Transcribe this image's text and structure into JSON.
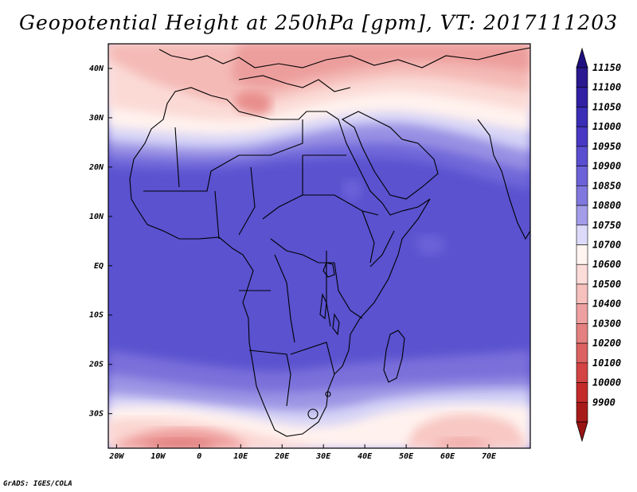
{
  "title": "Geopotential Height at 250hPa [gpm], VT: 2017111203",
  "credit": "GrADS: IGES/COLA",
  "map": {
    "projection": "latlon",
    "lon_range": [
      -22,
      80
    ],
    "lat_range": [
      -37,
      45
    ],
    "lon_ticks": [
      {
        "value": -20,
        "label": "20W"
      },
      {
        "value": -10,
        "label": "10W"
      },
      {
        "value": 0,
        "label": "0"
      },
      {
        "value": 10,
        "label": "10E"
      },
      {
        "value": 20,
        "label": "20E"
      },
      {
        "value": 30,
        "label": "30E"
      },
      {
        "value": 40,
        "label": "40E"
      },
      {
        "value": 50,
        "label": "50E"
      },
      {
        "value": 60,
        "label": "60E"
      },
      {
        "value": 70,
        "label": "70E"
      }
    ],
    "lat_ticks": [
      {
        "value": 40,
        "label": "40N"
      },
      {
        "value": 30,
        "label": "30N"
      },
      {
        "value": 20,
        "label": "20N"
      },
      {
        "value": 10,
        "label": "10N"
      },
      {
        "value": 0,
        "label": "EQ"
      },
      {
        "value": -10,
        "label": "10S"
      },
      {
        "value": -20,
        "label": "20S"
      },
      {
        "value": -30,
        "label": "30S"
      }
    ]
  },
  "colorbar": {
    "levels": [
      {
        "label": "11150",
        "color": "#2a1890"
      },
      {
        "label": "11100",
        "color": "#3120a4"
      },
      {
        "label": "11050",
        "color": "#3a2db6"
      },
      {
        "label": "11000",
        "color": "#4838c4"
      },
      {
        "label": "10950",
        "color": "#5a4ed0"
      },
      {
        "label": "10900",
        "color": "#6c62d8"
      },
      {
        "label": "10850",
        "color": "#8078de"
      },
      {
        "label": "10800",
        "color": "#a39ce8"
      },
      {
        "label": "10750",
        "color": "#dcdaf8"
      },
      {
        "label": "10700",
        "color": "#fff4f0"
      },
      {
        "label": "10600",
        "color": "#fcdcd8"
      },
      {
        "label": "10500",
        "color": "#f6c0bc"
      },
      {
        "label": "10400",
        "color": "#eea0a0"
      },
      {
        "label": "10300",
        "color": "#e48080"
      },
      {
        "label": "10200",
        "color": "#dc6262"
      },
      {
        "label": "10100",
        "color": "#d44444"
      },
      {
        "label": "10000",
        "color": "#c42a2a"
      },
      {
        "label": "9900",
        "color": "#a81a1a"
      }
    ],
    "top_arrow_color": "#1e1080",
    "bottom_arrow_color": "#9a1414"
  }
}
